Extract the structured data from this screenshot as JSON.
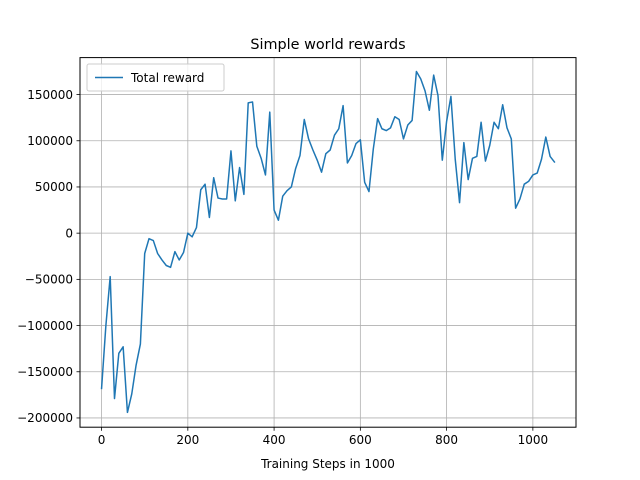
{
  "chart_data": {
    "type": "line",
    "title": "Simple world rewards",
    "xlabel": "Training Steps in 1000",
    "ylabel": "",
    "xlim": [
      -50,
      1100
    ],
    "ylim": [
      -210000,
      190000
    ],
    "xticks": [
      0,
      200,
      400,
      600,
      800,
      1000
    ],
    "xtick_labels": [
      "0",
      "200",
      "400",
      "600",
      "800",
      "1000"
    ],
    "yticks": [
      -200000,
      -150000,
      -100000,
      -50000,
      0,
      50000,
      100000,
      150000
    ],
    "ytick_labels": [
      "−200000",
      "−150000",
      "−100000",
      "−50000",
      "0",
      "50000",
      "100000",
      "150000"
    ],
    "grid": true,
    "legend": {
      "position": "top-left",
      "entries": [
        "Total reward"
      ]
    },
    "series": [
      {
        "name": "Total reward",
        "color": "#1f77b4",
        "x": [
          0,
          10,
          20,
          30,
          40,
          50,
          60,
          70,
          80,
          90,
          100,
          110,
          120,
          130,
          140,
          150,
          160,
          170,
          180,
          190,
          200,
          210,
          220,
          230,
          240,
          250,
          260,
          270,
          280,
          290,
          300,
          310,
          320,
          330,
          340,
          350,
          360,
          370,
          380,
          390,
          400,
          410,
          420,
          430,
          440,
          450,
          460,
          470,
          480,
          490,
          500,
          510,
          520,
          530,
          540,
          550,
          560,
          570,
          580,
          590,
          600,
          610,
          620,
          630,
          640,
          650,
          660,
          670,
          680,
          690,
          700,
          710,
          720,
          730,
          740,
          750,
          760,
          770,
          780,
          790,
          800,
          810,
          820,
          830,
          840,
          850,
          860,
          870,
          880,
          890,
          900,
          910,
          920,
          930,
          940,
          950,
          960,
          970,
          980,
          990,
          1000,
          1010,
          1020,
          1030,
          1040,
          1050
        ],
        "values": [
          -168000,
          -100000,
          -47000,
          -179000,
          -130000,
          -123000,
          -194000,
          -174000,
          -143000,
          -120000,
          -22000,
          -6000,
          -8000,
          -22000,
          -29000,
          -35000,
          -37000,
          -20000,
          -29000,
          -21000,
          0,
          -4000,
          6000,
          47000,
          53000,
          17000,
          60000,
          38000,
          37000,
          37000,
          89000,
          35000,
          71000,
          42000,
          141000,
          142000,
          94000,
          81000,
          63000,
          131000,
          25000,
          14000,
          40000,
          46000,
          50000,
          70000,
          84000,
          123000,
          102000,
          90000,
          79000,
          66000,
          86000,
          90000,
          106000,
          113000,
          138000,
          76000,
          84000,
          97000,
          101000,
          55000,
          45000,
          91000,
          124000,
          113000,
          111000,
          114000,
          126000,
          123000,
          102000,
          117000,
          122000,
          175000,
          167000,
          154000,
          133000,
          171000,
          149000,
          79000,
          121000,
          148000,
          80000,
          33000,
          98000,
          58000,
          81000,
          83000,
          120000,
          78000,
          95000,
          120000,
          113000,
          139000,
          114000,
          102000,
          27000,
          37000,
          53000,
          56000,
          63000,
          65000,
          80000,
          104000,
          83000,
          77000
        ]
      }
    ]
  }
}
